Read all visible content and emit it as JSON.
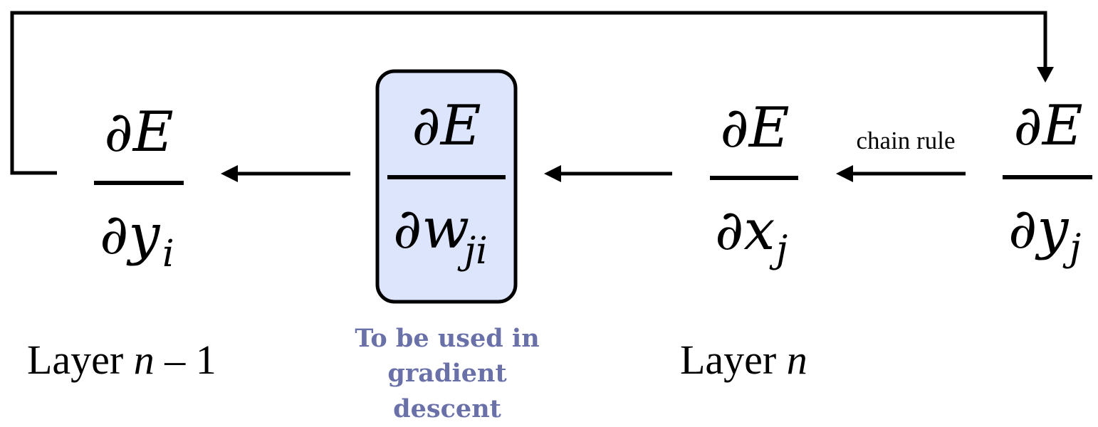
{
  "colors": {
    "box_fill": "#dde5fc",
    "note_text": "#6a70a8",
    "stroke": "#000000"
  },
  "fractions": {
    "dE_dyi": {
      "numerator": "∂E",
      "denominator_main": "∂y",
      "denominator_sub": "i"
    },
    "dE_dwji": {
      "numerator": "∂E",
      "denominator_main": "∂w",
      "denominator_sub": "ji"
    },
    "dE_dxj": {
      "numerator": "∂E",
      "denominator_main": "∂x",
      "denominator_sub": "j"
    },
    "dE_dyj": {
      "numerator": "∂E",
      "denominator_main": "∂y",
      "denominator_sub": "j"
    }
  },
  "labels": {
    "layer_prev_prefix": "Layer ",
    "layer_prev_var": "n",
    "layer_prev_suffix": " – 1",
    "layer_curr_prefix": "Layer ",
    "layer_curr_var": "n",
    "chain_rule": "chain rule",
    "note_line1": "To be used in",
    "note_line2": "gradient",
    "note_line3": "descent"
  }
}
